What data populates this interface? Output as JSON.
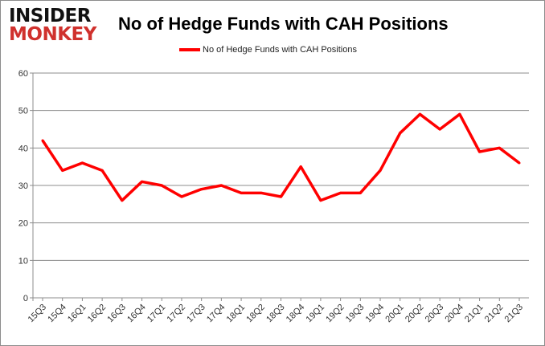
{
  "logo": {
    "line1": "INSIDER",
    "line2": "MONKEY"
  },
  "chart_data": {
    "type": "line",
    "title": "No of Hedge Funds with CAH Positions",
    "xlabel": "",
    "ylabel": "",
    "categories": [
      "15Q3",
      "15Q4",
      "16Q1",
      "16Q2",
      "16Q3",
      "16Q4",
      "17Q1",
      "17Q2",
      "17Q3",
      "17Q4",
      "18Q1",
      "18Q2",
      "18Q3",
      "18Q4",
      "19Q1",
      "19Q2",
      "19Q3",
      "19Q4",
      "20Q1",
      "20Q2",
      "20Q3",
      "20Q4",
      "21Q1",
      "21Q2",
      "21Q3"
    ],
    "series": [
      {
        "name": "No of Hedge Funds with CAH Positions",
        "color": "#ff0000",
        "values": [
          42,
          34,
          36,
          34,
          26,
          31,
          30,
          27,
          29,
          30,
          28,
          28,
          27,
          35,
          26,
          28,
          28,
          34,
          44,
          49,
          45,
          49,
          39,
          40,
          36
        ]
      }
    ],
    "ylim": [
      0,
      60
    ],
    "yticks": [
      0,
      10,
      20,
      30,
      40,
      50,
      60
    ],
    "grid": true,
    "legend": "top"
  }
}
